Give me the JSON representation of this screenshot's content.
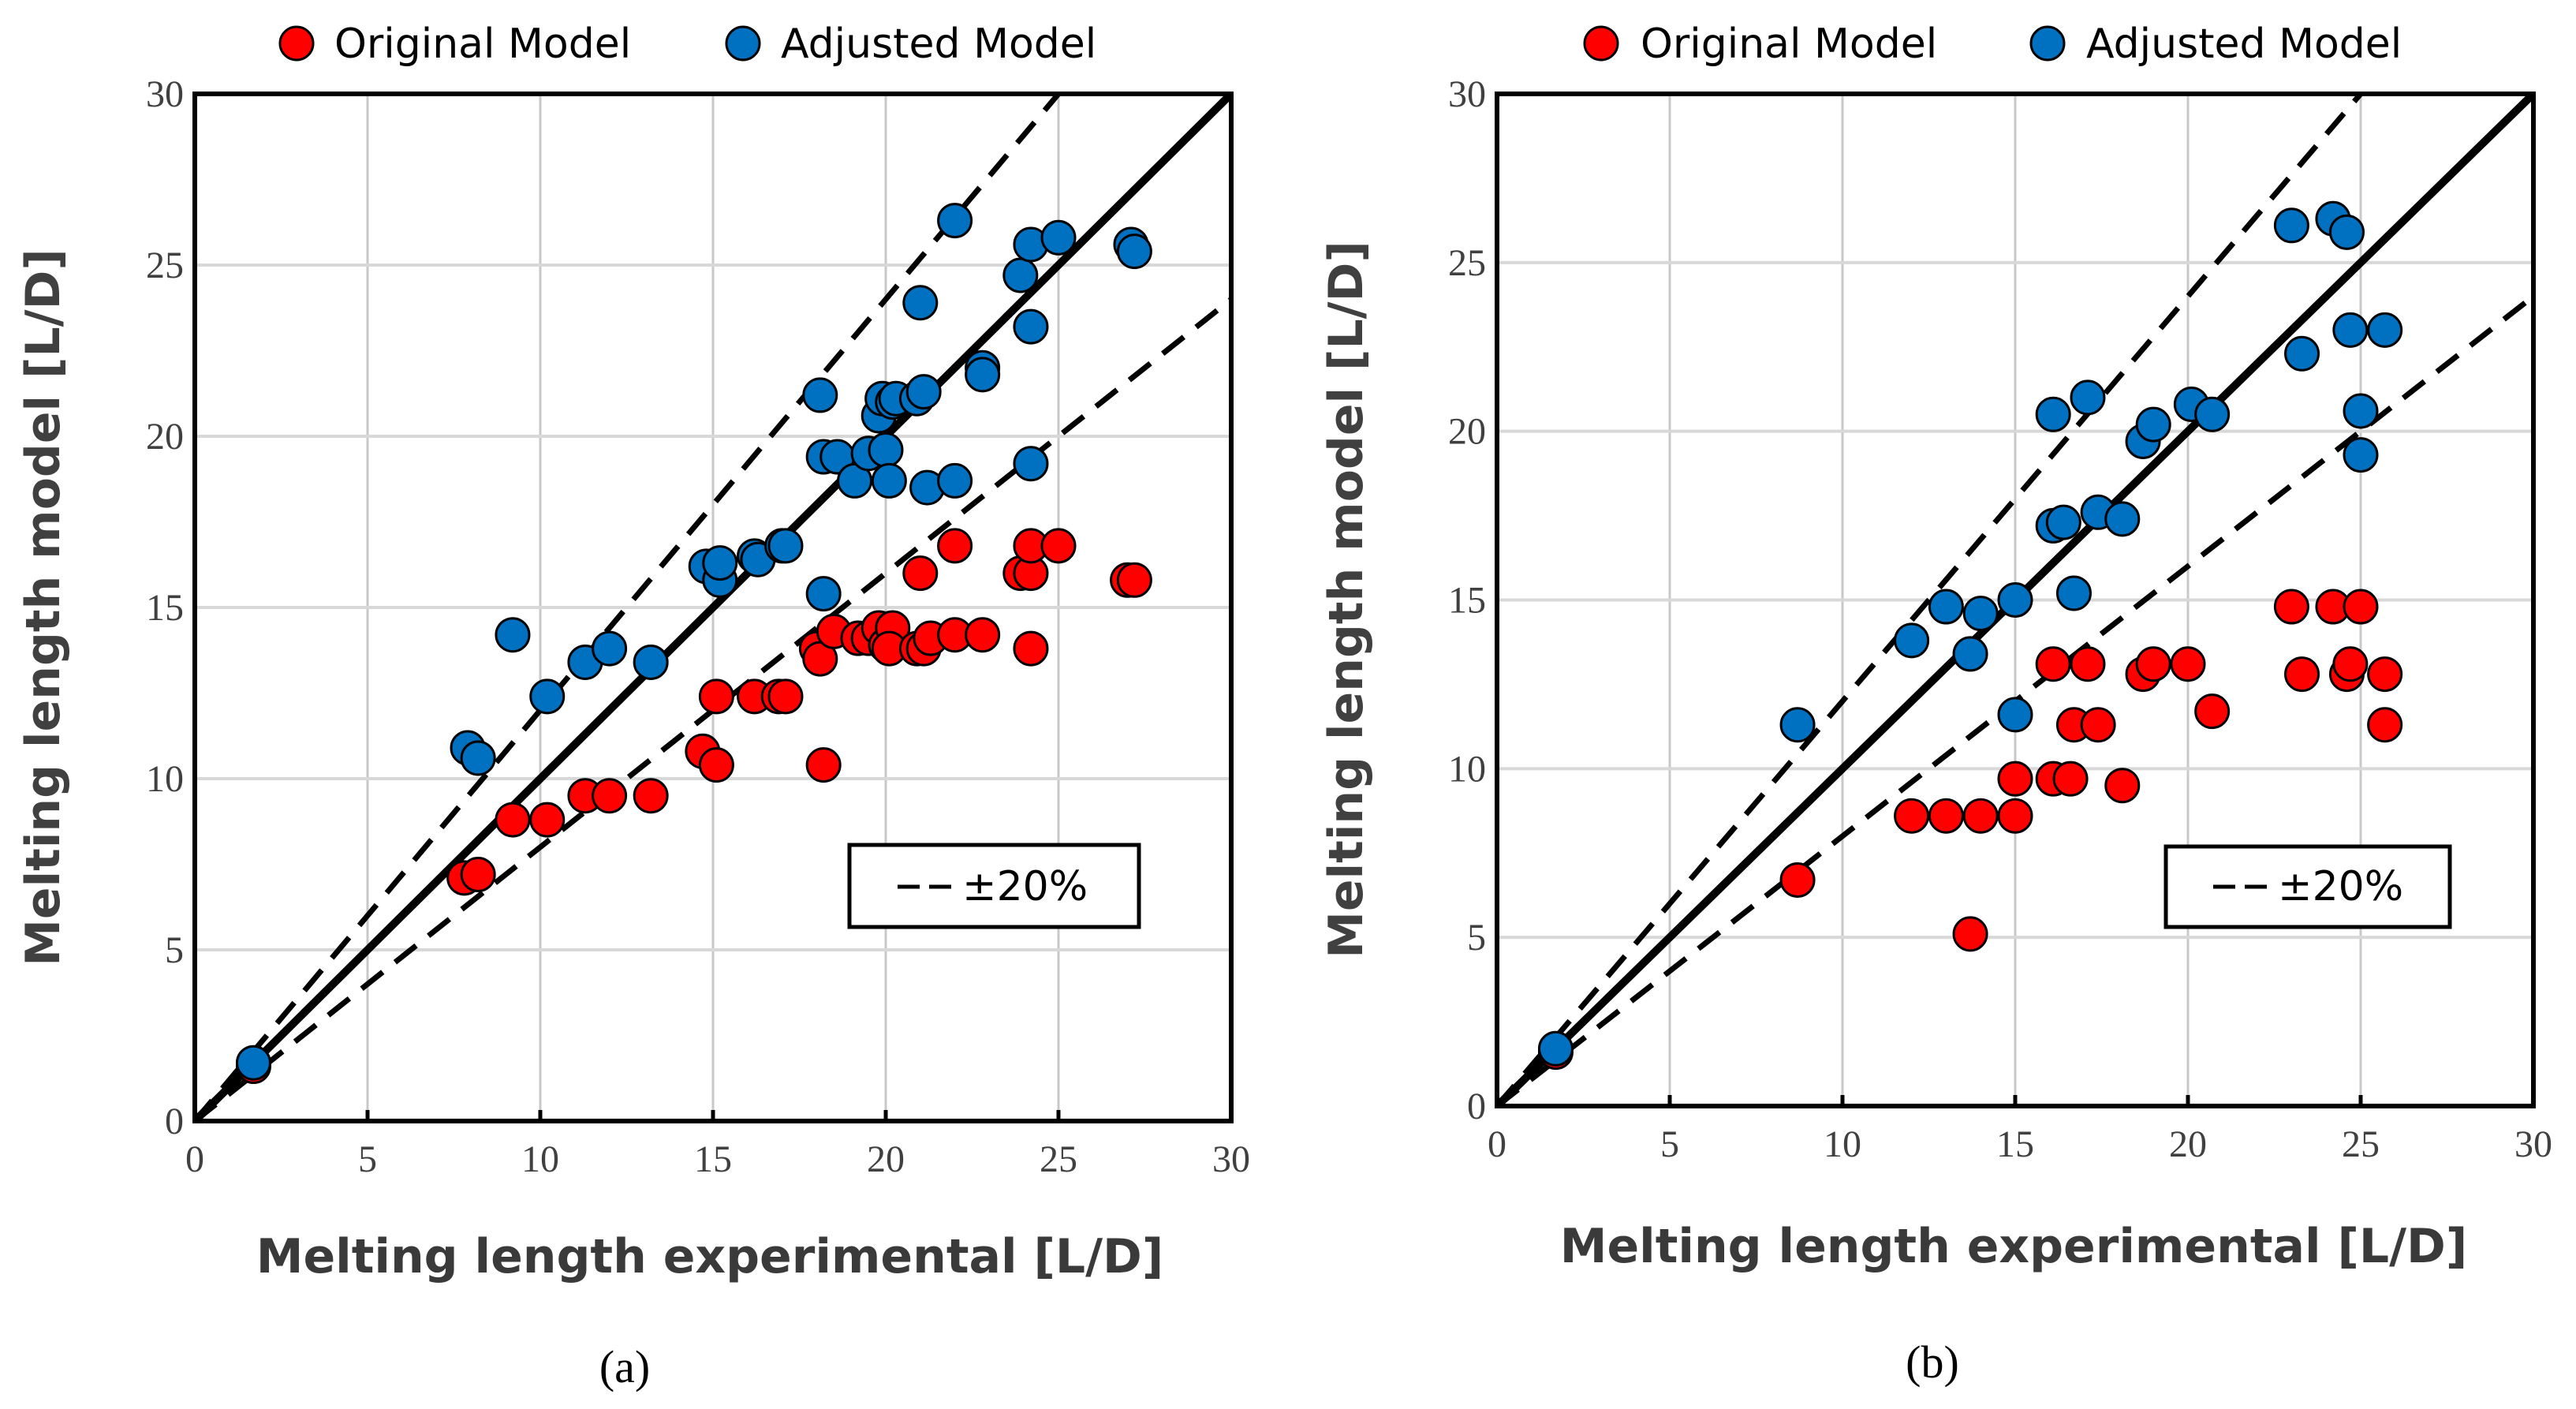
{
  "chart_data": [
    {
      "type": "scatter",
      "caption": "(a)",
      "xlabel": "Melting length experimental [L/D]",
      "ylabel": "Melting length model [L/D]",
      "xlim": [
        0,
        30
      ],
      "ylim": [
        0,
        30
      ],
      "xticks": [
        "0",
        "5",
        "10",
        "15",
        "20",
        "25",
        "30"
      ],
      "yticks": [
        "0",
        "5",
        "10",
        "15",
        "20",
        "25",
        "30"
      ],
      "grid": "vertical",
      "legend": {
        "position": "top",
        "entries": [
          "Original Model",
          "Adjusted Model"
        ]
      },
      "reference_lines": [
        {
          "name": "1:1 line",
          "style": "solid",
          "slope": 1.0
        },
        {
          "name": "+20%",
          "style": "dashed",
          "slope": 1.2
        },
        {
          "name": "-20%",
          "style": "dashed",
          "slope": 0.8
        }
      ],
      "annotation": "±20%",
      "series": [
        {
          "name": "Original Model",
          "color": "#ff0000",
          "points": [
            [
              1.7,
              1.6
            ],
            [
              7.8,
              7.1
            ],
            [
              8.2,
              7.2
            ],
            [
              9.2,
              8.8
            ],
            [
              10.2,
              8.8
            ],
            [
              11.3,
              9.5
            ],
            [
              12.0,
              9.5
            ],
            [
              13.2,
              9.5
            ],
            [
              14.7,
              10.8
            ],
            [
              15.1,
              10.4
            ],
            [
              15.1,
              12.4
            ],
            [
              16.2,
              12.4
            ],
            [
              16.9,
              12.4
            ],
            [
              17.1,
              12.4
            ],
            [
              18.0,
              13.8
            ],
            [
              18.1,
              13.5
            ],
            [
              18.2,
              10.4
            ],
            [
              18.5,
              14.3
            ],
            [
              19.2,
              14.1
            ],
            [
              19.5,
              14.1
            ],
            [
              19.8,
              14.4
            ],
            [
              20.0,
              13.9
            ],
            [
              20.2,
              14.4
            ],
            [
              20.1,
              13.8
            ],
            [
              20.9,
              13.8
            ],
            [
              21.0,
              16.0
            ],
            [
              21.1,
              13.8
            ],
            [
              21.3,
              14.1
            ],
            [
              22.0,
              14.2
            ],
            [
              22.0,
              16.8
            ],
            [
              22.8,
              14.2
            ],
            [
              23.9,
              16.0
            ],
            [
              24.2,
              16.0
            ],
            [
              24.2,
              16.8
            ],
            [
              24.2,
              13.8
            ],
            [
              25.0,
              16.8
            ],
            [
              27.0,
              15.8
            ],
            [
              27.2,
              15.8
            ]
          ]
        },
        {
          "name": "Adjusted Model",
          "color": "#0070c0",
          "points": [
            [
              1.7,
              1.7
            ],
            [
              7.9,
              10.9
            ],
            [
              8.2,
              10.6
            ],
            [
              9.2,
              14.2
            ],
            [
              10.2,
              12.4
            ],
            [
              11.3,
              13.4
            ],
            [
              12.0,
              13.8
            ],
            [
              13.2,
              13.4
            ],
            [
              14.8,
              16.2
            ],
            [
              15.2,
              15.8
            ],
            [
              15.2,
              16.3
            ],
            [
              16.2,
              16.5
            ],
            [
              16.3,
              16.4
            ],
            [
              17.0,
              16.8
            ],
            [
              17.1,
              16.8
            ],
            [
              18.1,
              21.2
            ],
            [
              18.2,
              19.4
            ],
            [
              18.2,
              15.4
            ],
            [
              18.6,
              19.4
            ],
            [
              19.1,
              18.7
            ],
            [
              19.5,
              19.5
            ],
            [
              19.8,
              20.6
            ],
            [
              19.9,
              21.1
            ],
            [
              20.0,
              19.6
            ],
            [
              20.1,
              18.7
            ],
            [
              20.2,
              21.0
            ],
            [
              20.3,
              21.1
            ],
            [
              20.9,
              21.1
            ],
            [
              21.0,
              23.9
            ],
            [
              21.1,
              21.3
            ],
            [
              21.2,
              18.5
            ],
            [
              22.0,
              26.3
            ],
            [
              22.0,
              18.7
            ],
            [
              22.8,
              22.0
            ],
            [
              22.8,
              21.8
            ],
            [
              23.9,
              24.7
            ],
            [
              24.2,
              25.6
            ],
            [
              24.2,
              23.2
            ],
            [
              24.2,
              19.2
            ],
            [
              25.0,
              25.8
            ],
            [
              27.1,
              25.6
            ],
            [
              27.2,
              25.4
            ]
          ]
        }
      ]
    },
    {
      "type": "scatter",
      "caption": "(b)",
      "xlabel": "Melting length experimental [L/D]",
      "ylabel": "Melting length model [L/D]",
      "xlim": [
        0,
        30
      ],
      "ylim": [
        0,
        30
      ],
      "xticks": [
        "0",
        "5",
        "10",
        "15",
        "20",
        "25",
        "30"
      ],
      "yticks": [
        "0",
        "5",
        "10",
        "15",
        "20",
        "25",
        "30"
      ],
      "grid": "vertical",
      "legend": {
        "position": "top",
        "entries": [
          "Original Model",
          "Adjusted Model"
        ]
      },
      "reference_lines": [
        {
          "name": "1:1 line",
          "style": "solid",
          "slope": 1.0
        },
        {
          "name": "+20%",
          "style": "dashed",
          "slope": 1.2
        },
        {
          "name": "-20%",
          "style": "dashed",
          "slope": 0.8
        }
      ],
      "annotation": "±20%",
      "series": [
        {
          "name": "Original Model",
          "color": "#ff0000",
          "points": [
            [
              1.7,
              1.6
            ],
            [
              8.7,
              6.7
            ],
            [
              12.0,
              8.6
            ],
            [
              13.0,
              8.6
            ],
            [
              13.7,
              5.1
            ],
            [
              14.0,
              8.6
            ],
            [
              15.0,
              8.6
            ],
            [
              15.0,
              9.7
            ],
            [
              16.1,
              9.7
            ],
            [
              16.1,
              13.1
            ],
            [
              16.6,
              9.7
            ],
            [
              16.7,
              11.3
            ],
            [
              17.1,
              13.1
            ],
            [
              17.4,
              11.3
            ],
            [
              18.1,
              9.5
            ],
            [
              18.7,
              12.8
            ],
            [
              19.0,
              13.1
            ],
            [
              20.0,
              13.1
            ],
            [
              20.7,
              11.7
            ],
            [
              23.0,
              14.8
            ],
            [
              23.3,
              12.8
            ],
            [
              24.2,
              14.8
            ],
            [
              24.6,
              12.8
            ],
            [
              24.7,
              13.1
            ],
            [
              25.0,
              14.8
            ],
            [
              25.7,
              12.8
            ],
            [
              25.7,
              11.3
            ]
          ]
        },
        {
          "name": "Adjusted Model",
          "color": "#0070c0",
          "points": [
            [
              1.7,
              1.7
            ],
            [
              8.7,
              11.3
            ],
            [
              12.0,
              13.8
            ],
            [
              13.0,
              14.8
            ],
            [
              13.7,
              13.4
            ],
            [
              14.0,
              14.6
            ],
            [
              15.0,
              15.0
            ],
            [
              15.0,
              11.6
            ],
            [
              16.1,
              17.2
            ],
            [
              16.1,
              20.5
            ],
            [
              16.4,
              17.3
            ],
            [
              16.7,
              15.2
            ],
            [
              17.1,
              21.0
            ],
            [
              17.4,
              17.6
            ],
            [
              18.1,
              17.4
            ],
            [
              18.7,
              19.7
            ],
            [
              19.0,
              20.2
            ],
            [
              20.1,
              20.8
            ],
            [
              20.7,
              20.5
            ],
            [
              23.0,
              26.1
            ],
            [
              23.3,
              22.3
            ],
            [
              24.2,
              26.3
            ],
            [
              24.6,
              25.9
            ],
            [
              24.7,
              23.0
            ],
            [
              25.0,
              20.6
            ],
            [
              25.0,
              19.3
            ],
            [
              25.7,
              23.0
            ]
          ]
        }
      ]
    }
  ]
}
